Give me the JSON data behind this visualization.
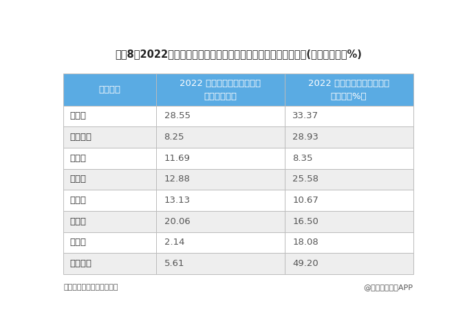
{
  "title": "图表8：2022年中国工业机器人行业代表性上市公司业务业绩情况(单位：亿元，%)",
  "col_headers_line1": [
    "公司名称",
    "2022 年工业机器人相关业务",
    "2022 年工业机器人相关业务"
  ],
  "col_headers_line2": [
    "",
    "收入（亿元）",
    "毛利率（%）"
  ],
  "rows": [
    [
      "埃斯顿",
      "28.55",
      "33.37"
    ],
    [
      "华中数控",
      "8.25",
      "28.93"
    ],
    [
      "机器人",
      "11.69",
      "8.35"
    ],
    [
      "拓斯达",
      "12.88",
      "25.58"
    ],
    [
      "埃夫特",
      "13.13",
      "10.67"
    ],
    [
      "新时达",
      "20.06",
      "16.50"
    ],
    [
      "凯尔达",
      "2.14",
      "18.08"
    ],
    [
      "汇川技术",
      "5.61",
      "49.20"
    ]
  ],
  "footer_left": "资料来源：前瞻产业研究院",
  "footer_right": "@前瞻经济学人APP",
  "header_bg_color": "#5AABE3",
  "header_text_color": "#FFFFFF",
  "row_odd_color": "#FFFFFF",
  "row_even_color": "#EEEEEE",
  "border_color": "#BBBBBB",
  "title_color": "#222222",
  "data_text_color": "#555555",
  "col0_text_color": "#333333",
  "bg_color": "#FFFFFF",
  "title_fontsize": 10.5,
  "header_fontsize": 9.5,
  "data_fontsize": 9.5,
  "footer_fontsize": 8
}
